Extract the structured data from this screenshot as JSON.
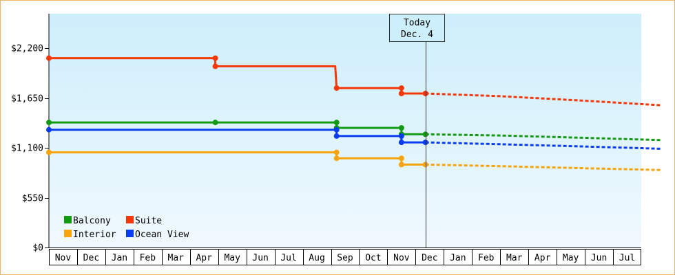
{
  "chart_data": {
    "type": "line",
    "y_ticks": [
      0,
      550,
      1100,
      1650,
      2200
    ],
    "y_tick_labels": [
      "$0",
      "$550",
      "$1,100",
      "$1,650",
      "$2,200"
    ],
    "ylim": [
      0,
      2580
    ],
    "x_tick_labels": [
      "Nov",
      "Dec",
      "Jan",
      "Feb",
      "Mar",
      "Apr",
      "May",
      "Jun",
      "Jul",
      "Aug",
      "Sep",
      "Oct",
      "Nov",
      "Dec",
      "Jan",
      "Feb",
      "Mar",
      "Apr",
      "May",
      "Jun",
      "Jul"
    ],
    "today_marker": {
      "line1": "Today",
      "line2": "Dec. 4"
    },
    "legend": {
      "position": "bottom-left"
    },
    "background": {
      "top_color": "#cdeefb",
      "bottom_color": "#f0f9fe"
    },
    "series": [
      {
        "name": "Balcony",
        "color": "#139a13",
        "points": [
          [
            0,
            1380
          ],
          [
            5.9,
            1380
          ],
          [
            10.2,
            1380
          ],
          [
            10.2,
            1320
          ],
          [
            12.5,
            1320
          ],
          [
            12.5,
            1250
          ],
          [
            13.35,
            1250
          ]
        ],
        "markers": [
          [
            0,
            1380
          ],
          [
            5.9,
            1380
          ],
          [
            10.2,
            1380
          ],
          [
            10.2,
            1320
          ],
          [
            12.5,
            1320
          ],
          [
            12.5,
            1250
          ],
          [
            13.35,
            1250
          ]
        ],
        "forecast": [
          [
            13.35,
            1250
          ],
          [
            16,
            1236
          ],
          [
            19,
            1210
          ],
          [
            21.7,
            1185
          ]
        ]
      },
      {
        "name": "Suite",
        "color": "#f43706",
        "points": [
          [
            0,
            2090
          ],
          [
            5.9,
            2090
          ],
          [
            5.9,
            2000
          ],
          [
            10.15,
            2000
          ],
          [
            10.2,
            1760
          ],
          [
            12.5,
            1760
          ],
          [
            12.5,
            1700
          ],
          [
            13.35,
            1700
          ]
        ],
        "markers": [
          [
            0,
            2090
          ],
          [
            5.9,
            2090
          ],
          [
            5.9,
            2000
          ],
          [
            10.2,
            1760
          ],
          [
            12.5,
            1760
          ],
          [
            12.5,
            1700
          ],
          [
            13.35,
            1700
          ]
        ],
        "forecast": [
          [
            13.35,
            1700
          ],
          [
            16,
            1670
          ],
          [
            19,
            1620
          ],
          [
            21.7,
            1570
          ]
        ]
      },
      {
        "name": "Interior",
        "color": "#f7a40c",
        "points": [
          [
            0,
            1050
          ],
          [
            10.2,
            1050
          ],
          [
            10.2,
            985
          ],
          [
            12.5,
            985
          ],
          [
            12.5,
            915
          ],
          [
            13.35,
            915
          ]
        ],
        "markers": [
          [
            0,
            1050
          ],
          [
            10.2,
            1050
          ],
          [
            10.2,
            985
          ],
          [
            12.5,
            985
          ],
          [
            12.5,
            915
          ],
          [
            13.35,
            915
          ]
        ],
        "forecast": [
          [
            13.35,
            915
          ],
          [
            16,
            898
          ],
          [
            19,
            875
          ],
          [
            21.7,
            855
          ]
        ]
      },
      {
        "name": "Ocean View",
        "color": "#0a3cf2",
        "points": [
          [
            0,
            1300
          ],
          [
            10.2,
            1300
          ],
          [
            10.2,
            1230
          ],
          [
            12.5,
            1230
          ],
          [
            12.5,
            1160
          ],
          [
            13.35,
            1160
          ]
        ],
        "markers": [
          [
            0,
            1300
          ],
          [
            10.2,
            1300
          ],
          [
            10.2,
            1230
          ],
          [
            12.5,
            1230
          ],
          [
            12.5,
            1160
          ],
          [
            13.35,
            1160
          ]
        ],
        "forecast": [
          [
            13.35,
            1160
          ],
          [
            16,
            1140
          ],
          [
            19,
            1115
          ],
          [
            21.7,
            1090
          ]
        ]
      }
    ]
  }
}
